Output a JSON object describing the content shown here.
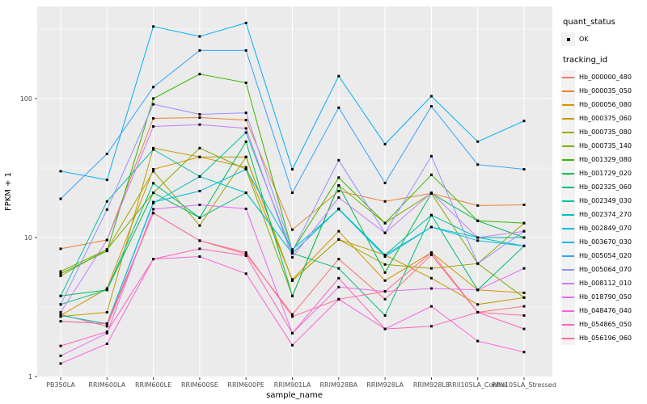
{
  "figure": {
    "panel_bg": "#EBEBEB",
    "grid_color": "#FFFFFF",
    "axis_text_color": "#4D4D4D",
    "tick_color": "#333333",
    "text_color": "#000000",
    "legend_key_bg": "#F2F2F2",
    "point_color": "#000000"
  },
  "legend": {
    "quant_title": "quant_status",
    "quant_items": [
      {
        "label": "OK",
        "shape": "filled-square",
        "color": "#000000"
      }
    ],
    "tracking_title": "tracking_id"
  },
  "chart_data": {
    "type": "line",
    "title": "",
    "xlabel": "sample_name",
    "ylabel": "FPKM + 1",
    "y_scale": "log10",
    "y_ticks": [
      1,
      10,
      100
    ],
    "y_minor_ticks": [
      3.1623,
      31.623,
      316.23
    ],
    "ylim": [
      1,
      460
    ],
    "grid": true,
    "legend_position": "right",
    "point_shape": "filled-square",
    "point_color": "#000000",
    "categories": [
      "PB350LA",
      "RRIM600LA",
      "RRIM600LE",
      "RRIM600SE",
      "RRIM600PE",
      "RRIM901LA",
      "RRIM928BA",
      "RRIM928LA",
      "RRIM928LE",
      "RRII105LA_Control",
      "RRII105LA_Stressed"
    ],
    "series": [
      {
        "name": "Hb_000000_480",
        "color": "#F8766D",
        "values": [
          2.8,
          2.3,
          15,
          9.5,
          7.6,
          2.8,
          7.0,
          3.6,
          7.5,
          2.9,
          3.2
        ]
      },
      {
        "name": "Hb_000035_050",
        "color": "#EA8331",
        "values": [
          8.3,
          9.6,
          72,
          73,
          70,
          11.4,
          21.6,
          18.2,
          20.8,
          17.0,
          17.2
        ]
      },
      {
        "name": "Hb_000056_080",
        "color": "#D89000",
        "values": [
          2.75,
          4.3,
          31,
          38,
          32,
          5.0,
          11.1,
          4.9,
          7.8,
          4.2,
          4.0
        ]
      },
      {
        "name": "Hb_000375_060",
        "color": "#C09B00",
        "values": [
          2.7,
          2.9,
          44,
          38,
          38,
          4.9,
          9.7,
          7.5,
          5.1,
          3.3,
          3.7
        ]
      },
      {
        "name": "Hb_000735_080",
        "color": "#A3A500",
        "values": [
          5.3,
          8.2,
          30,
          12.2,
          38,
          4.9,
          9.7,
          6.4,
          6.0,
          6.5,
          12.7
        ]
      },
      {
        "name": "Hb_000735_140",
        "color": "#7CAE00",
        "values": [
          5.7,
          8.2,
          21,
          44,
          31,
          3.8,
          23.7,
          12.7,
          20.8,
          6.5,
          3.7
        ]
      },
      {
        "name": "Hb_001329_080",
        "color": "#39B600",
        "values": [
          5.5,
          8.0,
          100,
          150,
          130,
          8.0,
          27,
          12.7,
          28.3,
          13.2,
          12.7
        ]
      },
      {
        "name": "Hb_001729_020",
        "color": "#00BB4E",
        "values": [
          3.8,
          4.2,
          21,
          13.9,
          49,
          3.8,
          23.7,
          5.6,
          20.8,
          13.2,
          10.0
        ]
      },
      {
        "name": "Hb_002325_060",
        "color": "#00BF7D",
        "values": [
          3.3,
          4.2,
          24.6,
          13.9,
          21,
          7.7,
          6.0,
          2.75,
          14.5,
          4.2,
          8.7
        ]
      },
      {
        "name": "Hb_002349_030",
        "color": "#00C1A3",
        "values": [
          3.8,
          18.2,
          43,
          27.5,
          57,
          7.7,
          16.1,
          7.5,
          14.5,
          10.0,
          10.0
        ]
      },
      {
        "name": "Hb_002374_270",
        "color": "#00BFC4",
        "values": [
          2.75,
          2.4,
          17.7,
          27.5,
          21,
          7.7,
          16.1,
          7.5,
          11.9,
          10.0,
          8.7
        ]
      },
      {
        "name": "Hb_002849_070",
        "color": "#00BBDB",
        "values": [
          2.5,
          2.4,
          18,
          21.6,
          31,
          8.2,
          16.0,
          7.3,
          11.9,
          9.5,
          8.7
        ]
      },
      {
        "name": "Hb_003670_030",
        "color": "#00B0F6",
        "values": [
          30,
          26,
          330,
          280,
          350,
          31,
          145,
          47,
          104,
          49,
          69
        ]
      },
      {
        "name": "Hb_005054_020",
        "color": "#35A2FF",
        "values": [
          19,
          40,
          121,
          222,
          222,
          21,
          86,
          24.7,
          88,
          33.5,
          31
        ]
      },
      {
        "name": "Hb_005064_070",
        "color": "#9590FF",
        "values": [
          3.3,
          15.9,
          91,
          77,
          79,
          8.0,
          36,
          10.8,
          38.5,
          6.5,
          11.1
        ]
      },
      {
        "name": "Hb_008112_010",
        "color": "#C77CFF",
        "values": [
          2.9,
          9.6,
          63,
          65,
          61,
          7.2,
          19.4,
          10.8,
          21,
          10.0,
          11.1
        ]
      },
      {
        "name": "Hb_018790_050",
        "color": "#E76BF3",
        "values": [
          1.41,
          2.05,
          16,
          17.2,
          16.1,
          2.05,
          4.4,
          4.1,
          4.3,
          4.2,
          6.0
        ]
      },
      {
        "name": "Hb_048476_040",
        "color": "#FA62DB",
        "values": [
          1.24,
          1.72,
          7.0,
          7.3,
          5.5,
          1.68,
          3.6,
          2.2,
          3.2,
          1.8,
          1.5
        ]
      },
      {
        "name": "Hb_054865_050",
        "color": "#FF62BC",
        "values": [
          1.66,
          2.1,
          7.0,
          8.3,
          7.4,
          2.05,
          5.1,
          2.2,
          2.3,
          2.9,
          2.2
        ]
      },
      {
        "name": "Hb_056196_060",
        "color": "#FF6A98",
        "values": [
          2.5,
          2.4,
          15,
          9.5,
          7.8,
          2.7,
          3.6,
          4.1,
          7.8,
          2.9,
          2.75
        ]
      }
    ]
  }
}
